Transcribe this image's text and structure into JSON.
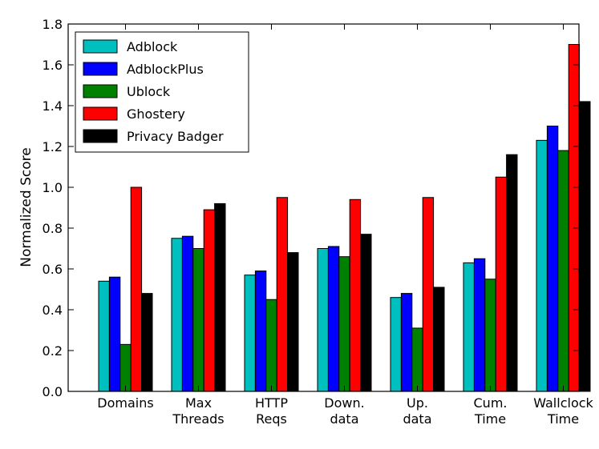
{
  "chart_data": {
    "type": "bar",
    "title": "",
    "xlabel": "",
    "ylabel": "Normalized Score",
    "ylim": [
      0.0,
      1.8
    ],
    "yticks": [
      "0.0",
      "0.2",
      "0.4",
      "0.6",
      "0.8",
      "1.0",
      "1.2",
      "1.4",
      "1.6",
      "1.8"
    ],
    "categories": [
      [
        "Domains"
      ],
      [
        "Max",
        "Threads"
      ],
      [
        "HTTP",
        "Reqs"
      ],
      [
        "Down.",
        "data"
      ],
      [
        "Up.",
        "data"
      ],
      [
        "Cum.",
        "Time"
      ],
      [
        "Wallclock",
        "Time"
      ]
    ],
    "legend_position": "top-left",
    "series": [
      {
        "name": "Adblock",
        "color": "#00bfbf",
        "values": [
          0.54,
          0.75,
          0.57,
          0.7,
          0.46,
          0.63,
          1.23
        ]
      },
      {
        "name": "AdblockPlus",
        "color": "#0000ff",
        "values": [
          0.56,
          0.76,
          0.59,
          0.71,
          0.48,
          0.65,
          1.3
        ]
      },
      {
        "name": "Ublock",
        "color": "#008000",
        "values": [
          0.23,
          0.7,
          0.45,
          0.66,
          0.31,
          0.55,
          1.18
        ]
      },
      {
        "name": "Ghostery",
        "color": "#ff0000",
        "values": [
          1.0,
          0.89,
          0.95,
          0.94,
          0.95,
          1.05,
          1.7
        ]
      },
      {
        "name": "Privacy Badger",
        "color": "#000000",
        "values": [
          0.48,
          0.92,
          0.68,
          0.77,
          0.51,
          1.16,
          1.42
        ]
      }
    ]
  }
}
